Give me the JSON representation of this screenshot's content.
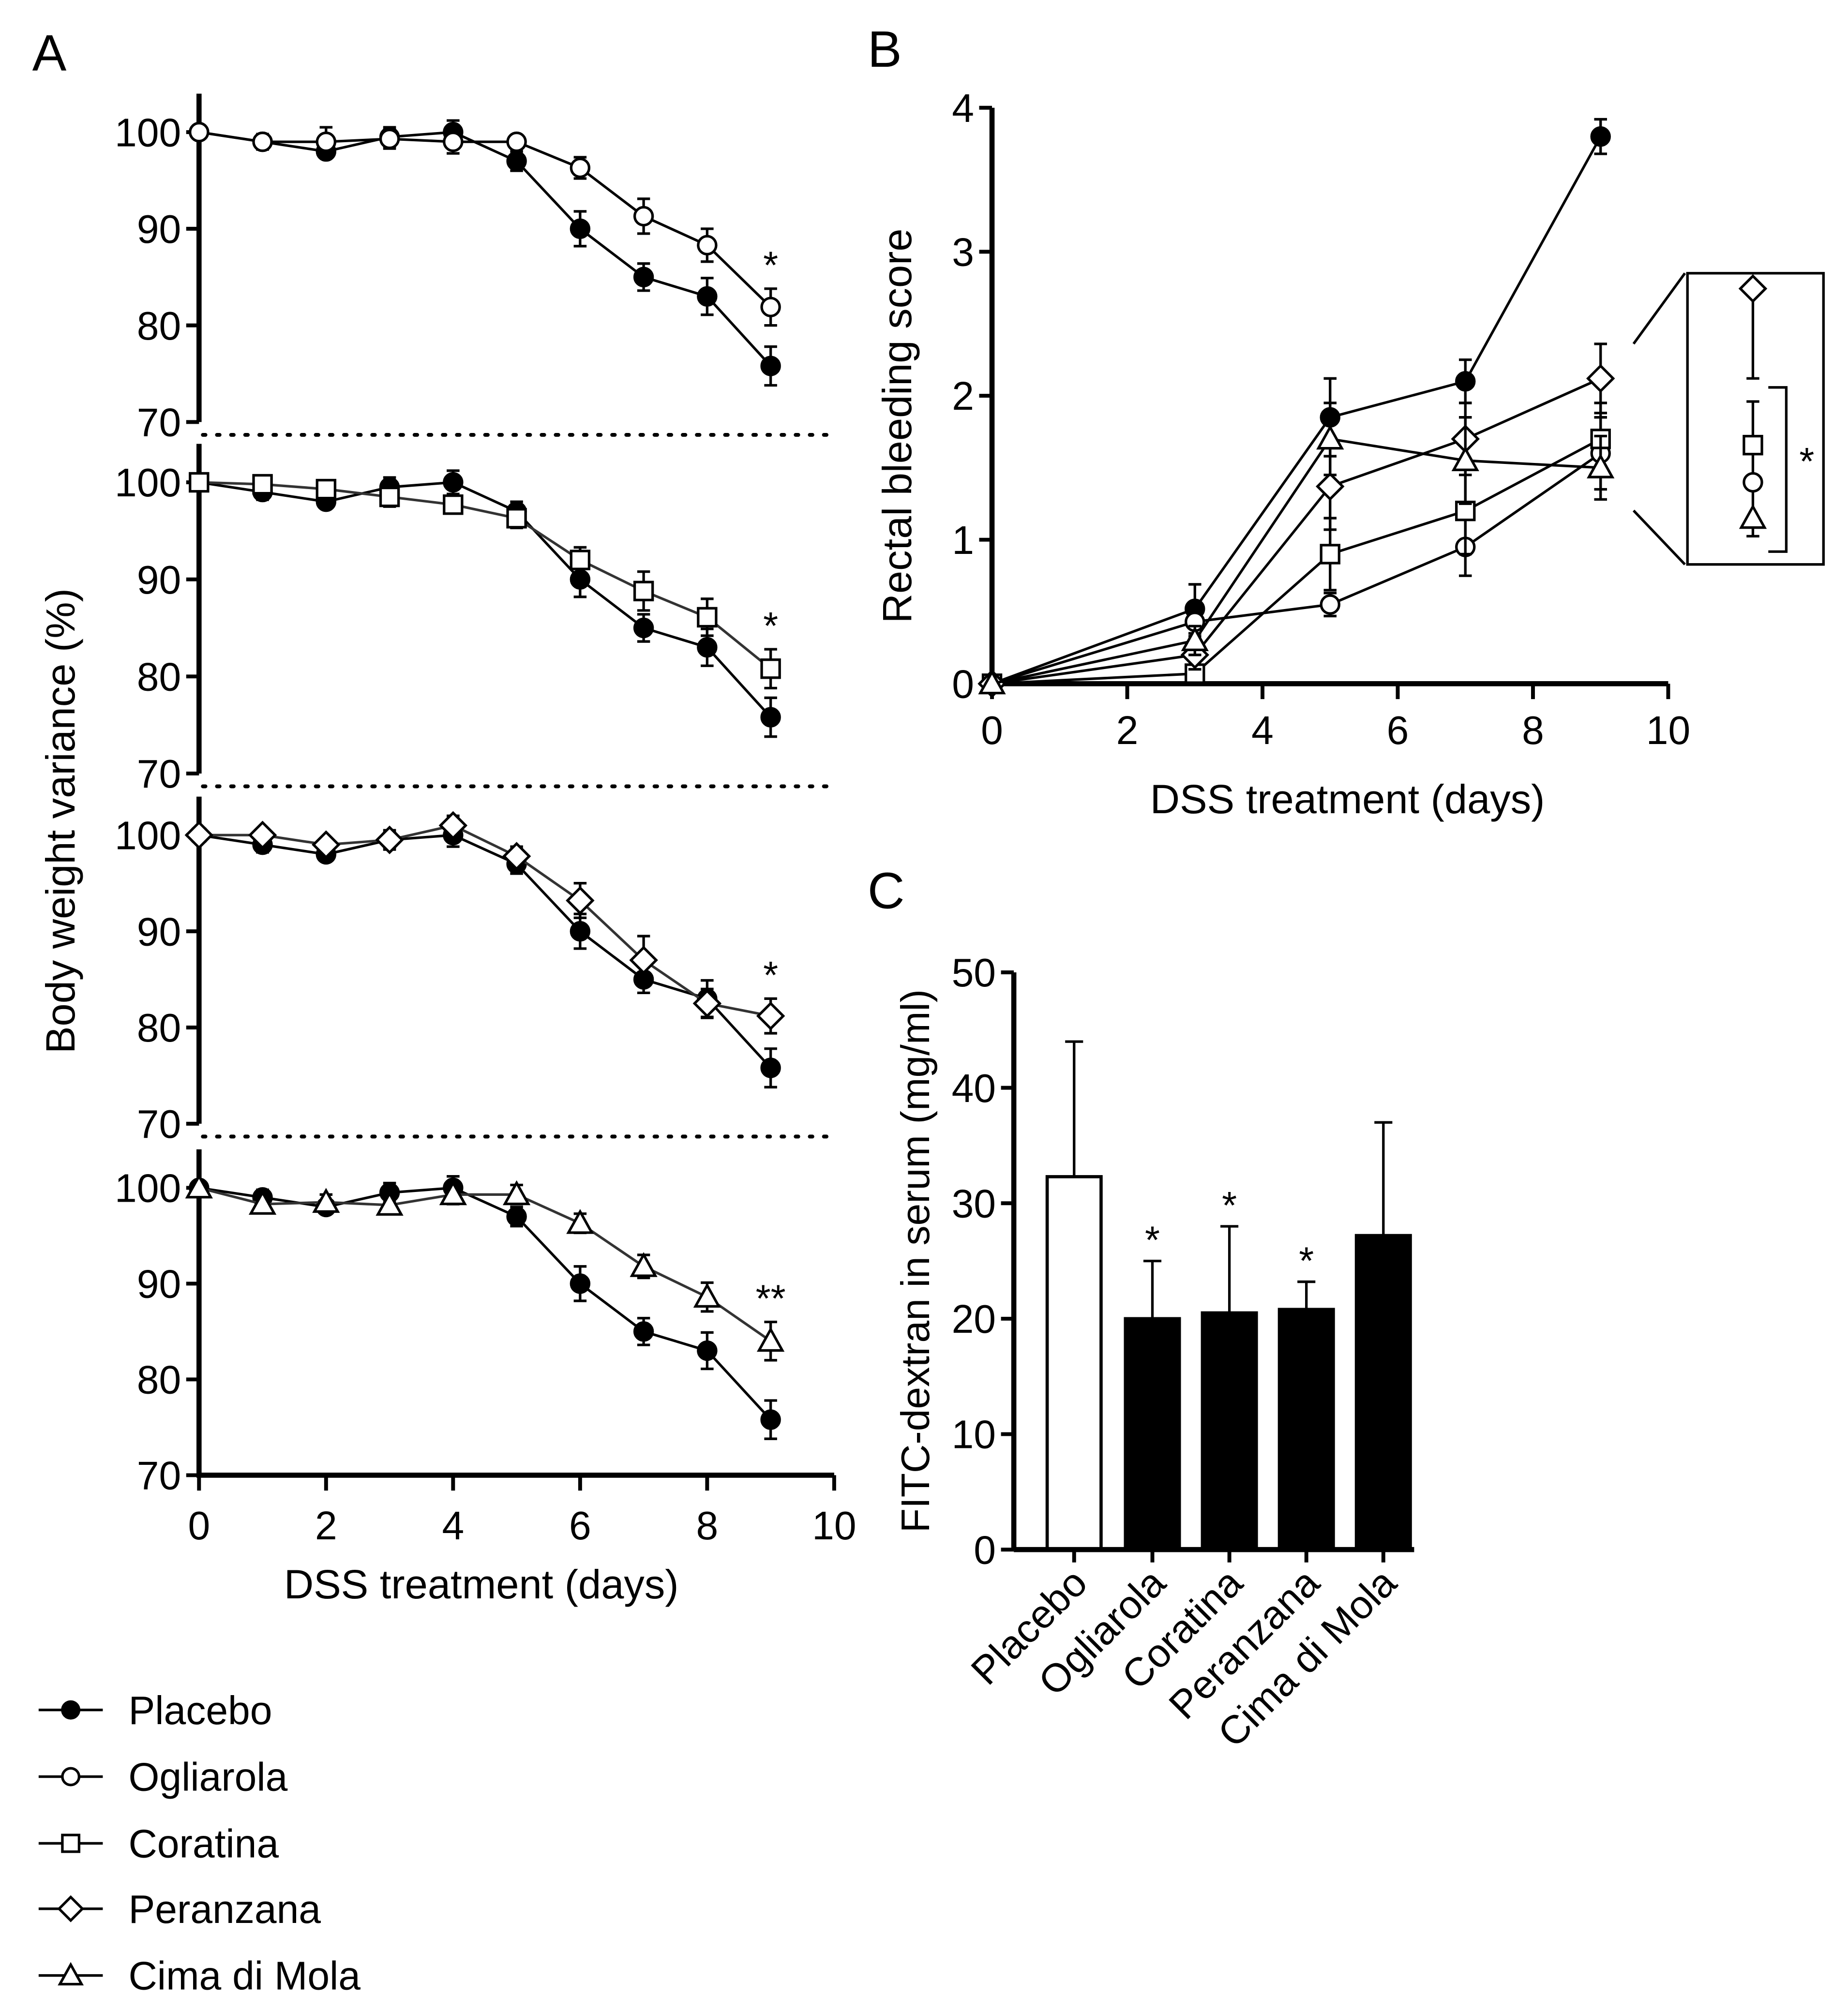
{
  "panel_labels": {
    "a": "A",
    "b": "B",
    "c": "C"
  },
  "legend": [
    {
      "name": "Placebo",
      "marker": "filled-circle"
    },
    {
      "name": "Ogliarola",
      "marker": "open-circle"
    },
    {
      "name": "Coratina",
      "marker": "open-square"
    },
    {
      "name": "Peranzana",
      "marker": "open-diamond"
    },
    {
      "name": "Cima di Mola",
      "marker": "open-triangle"
    }
  ],
  "chart_data": [
    {
      "id": "A",
      "type": "line",
      "ylabel": "Body weight variance (%)",
      "xlabel": "DSS treatment (days)",
      "xlim": [
        0,
        10
      ],
      "xticks": [
        0,
        2,
        4,
        6,
        8,
        10
      ],
      "ylim": [
        70,
        100
      ],
      "yticks": [
        70,
        80,
        90,
        100
      ],
      "x": [
        0,
        1,
        2,
        3,
        4,
        5,
        6,
        7,
        8,
        9
      ],
      "reference": {
        "name": "Placebo",
        "values": [
          100,
          99,
          98,
          99.5,
          100,
          97,
          90,
          85,
          83,
          75.8
        ],
        "errors": [
          0,
          0.8,
          0.5,
          1,
          1.2,
          1,
          1.8,
          1.4,
          1.9,
          2
        ]
      },
      "subplots": [
        {
          "name": "Ogliarola",
          "values": [
            100,
            99,
            99,
            99.3,
            99,
            99,
            96.3,
            91.3,
            88.3,
            81.9
          ],
          "errors": [
            0,
            0.5,
            1.5,
            1,
            1.2,
            0.7,
            1.1,
            1.8,
            1.7,
            1.9
          ],
          "significance": "*"
        },
        {
          "name": "Coratina",
          "values": [
            100,
            99.8,
            99.3,
            98.5,
            97.7,
            96.3,
            92,
            88.8,
            86.1,
            80.8
          ],
          "errors": [
            0,
            0.5,
            0.8,
            1,
            0.9,
            1,
            1.3,
            2,
            1.9,
            2
          ],
          "significance": "*"
        },
        {
          "name": "Peranzana",
          "values": [
            100,
            100,
            99,
            99.5,
            101,
            97.8,
            93.2,
            87,
            82.5,
            81.2
          ],
          "errors": [
            0,
            0.5,
            0.7,
            0.8,
            1,
            1,
            1.8,
            2.5,
            1.5,
            1.8
          ],
          "significance": "*"
        },
        {
          "name": "Cima di Mola",
          "values": [
            100,
            98.3,
            98.5,
            98.2,
            99.3,
            99.3,
            96.3,
            91.8,
            88.6,
            84
          ],
          "errors": [
            0,
            0.8,
            0.8,
            0.8,
            1,
            1,
            1,
            1.2,
            1.5,
            2
          ],
          "significance": "**"
        }
      ]
    },
    {
      "id": "B",
      "type": "line",
      "ylabel": "Rectal bleeding score",
      "xlabel": "DSS treatment (days)",
      "xlim": [
        0,
        10
      ],
      "xticks": [
        0,
        2,
        4,
        6,
        8,
        10
      ],
      "ylim": [
        0,
        4
      ],
      "yticks": [
        0,
        1,
        2,
        3,
        4
      ],
      "x": [
        0,
        3,
        5,
        7,
        9
      ],
      "series": [
        {
          "name": "Placebo",
          "values": [
            0,
            0.52,
            1.85,
            2.1,
            3.8
          ],
          "errors": [
            0,
            0.17,
            0.27,
            0.15,
            0.12
          ]
        },
        {
          "name": "Ogliarola",
          "values": [
            0,
            0.43,
            0.55,
            0.95,
            1.6
          ],
          "errors": [
            0,
            0.1,
            0.08,
            0.2,
            0.25
          ]
        },
        {
          "name": "Coratina",
          "values": [
            0,
            0.07,
            0.9,
            1.2,
            1.7
          ],
          "errors": [
            0,
            0.05,
            0.25,
            0.3,
            0.25
          ]
        },
        {
          "name": "Peranzana",
          "values": [
            0,
            0.2,
            1.37,
            1.7,
            2.12
          ],
          "errors": [
            0,
            0.1,
            0.3,
            0.25,
            0.24
          ]
        },
        {
          "name": "Cima di Mola",
          "values": [
            0,
            0.3,
            1.7,
            1.55,
            1.5
          ],
          "errors": [
            0,
            0.1,
            0.25,
            0.3,
            0.22
          ]
        }
      ],
      "inset_significance": "*"
    },
    {
      "id": "C",
      "type": "bar",
      "ylabel": "FITC-dextran in serum (mg/ml)",
      "ylim": [
        0,
        50
      ],
      "yticks": [
        0,
        10,
        20,
        30,
        40,
        50
      ],
      "categories": [
        "Placebo",
        "Ogliarola",
        "Coratina",
        "Peranzana",
        "Cima di Mola"
      ],
      "values": [
        32.3,
        20,
        20.5,
        20.8,
        27.2
      ],
      "error_upper": [
        44,
        25,
        28,
        23.2,
        37
      ],
      "significance": [
        "",
        "*",
        "*",
        "*",
        ""
      ],
      "fills": [
        "#ffffff",
        "#000000",
        "#000000",
        "#000000",
        "#000000"
      ]
    }
  ]
}
